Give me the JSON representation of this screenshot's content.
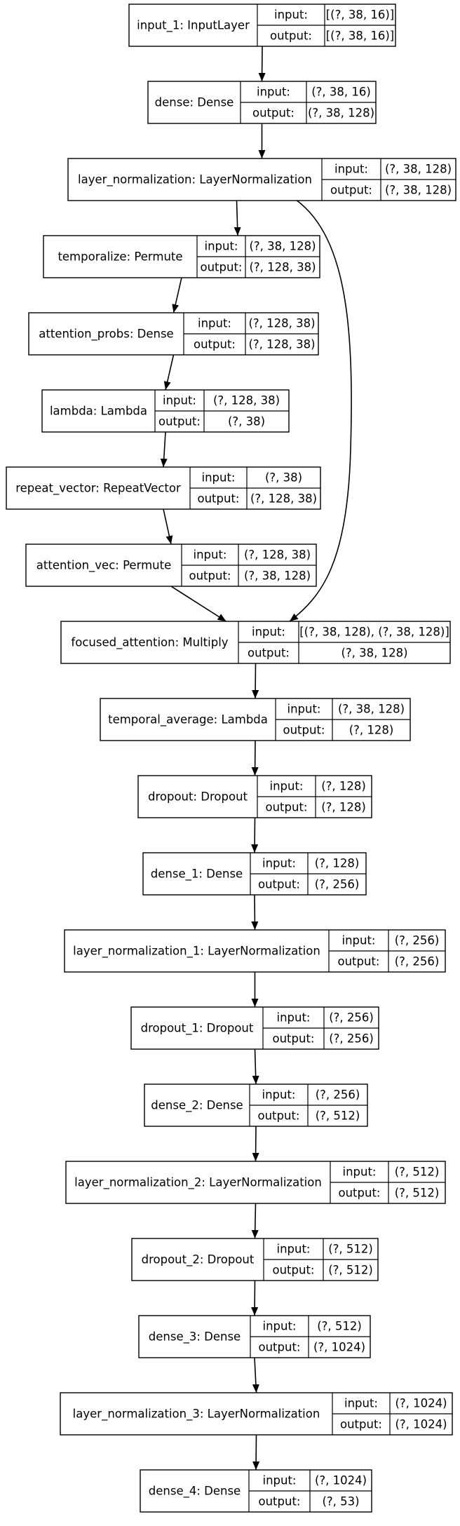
{
  "layers": [
    {
      "name": "input_1: InputLayer",
      "input_label": "input:",
      "input_shape": "[(?, 38, 16)]",
      "output_label": "output:",
      "output_shape": "[(?, 38, 16)]"
    },
    {
      "name": "dense: Dense",
      "input_label": "input:",
      "input_shape": "(?, 38, 16)",
      "output_label": "output:",
      "output_shape": "(?, 38, 128)"
    },
    {
      "name": "layer_normalization: LayerNormalization",
      "input_label": "input:",
      "input_shape": "(?, 38, 128)",
      "output_label": "output:",
      "output_shape": "(?, 38, 128)"
    },
    {
      "name": "temporalize: Permute",
      "input_label": "input:",
      "input_shape": "(?, 38, 128)",
      "output_label": "output:",
      "output_shape": "(?, 128, 38)"
    },
    {
      "name": "attention_probs: Dense",
      "input_label": "input:",
      "input_shape": "(?, 128, 38)",
      "output_label": "output:",
      "output_shape": "(?, 128, 38)"
    },
    {
      "name": "lambda: Lambda",
      "input_label": "input:",
      "input_shape": "(?, 128, 38)",
      "output_label": "output:",
      "output_shape": "(?, 38)"
    },
    {
      "name": "repeat_vector: RepeatVector",
      "input_label": "input:",
      "input_shape": "(?, 38)",
      "output_label": "output:",
      "output_shape": "(?, 128, 38)"
    },
    {
      "name": "attention_vec: Permute",
      "input_label": "input:",
      "input_shape": "(?, 128, 38)",
      "output_label": "output:",
      "output_shape": "(?, 38, 128)"
    },
    {
      "name": "focused_attention: Multiply",
      "input_label": "input:",
      "input_shape": "[(?, 38, 128), (?, 38, 128)]",
      "output_label": "output:",
      "output_shape": "(?, 38, 128)"
    },
    {
      "name": "temporal_average: Lambda",
      "input_label": "input:",
      "input_shape": "(?, 38, 128)",
      "output_label": "output:",
      "output_shape": "(?, 128)"
    },
    {
      "name": "dropout: Dropout",
      "input_label": "input:",
      "input_shape": "(?, 128)",
      "output_label": "output:",
      "output_shape": "(?, 128)"
    },
    {
      "name": "dense_1: Dense",
      "input_label": "input:",
      "input_shape": "(?, 128)",
      "output_label": "output:",
      "output_shape": "(?, 256)"
    },
    {
      "name": "layer_normalization_1: LayerNormalization",
      "input_label": "input:",
      "input_shape": "(?, 256)",
      "output_label": "output:",
      "output_shape": "(?, 256)"
    },
    {
      "name": "dropout_1: Dropout",
      "input_label": "input:",
      "input_shape": "(?, 256)",
      "output_label": "output:",
      "output_shape": "(?, 256)"
    },
    {
      "name": "dense_2: Dense",
      "input_label": "input:",
      "input_shape": "(?, 256)",
      "output_label": "output:",
      "output_shape": "(?, 512)"
    },
    {
      "name": "layer_normalization_2: LayerNormalization",
      "input_label": "input:",
      "input_shape": "(?, 512)",
      "output_label": "output:",
      "output_shape": "(?, 512)"
    },
    {
      "name": "dropout_2: Dropout",
      "input_label": "input:",
      "input_shape": "(?, 512)",
      "output_label": "output:",
      "output_shape": "(?, 512)"
    },
    {
      "name": "dense_3: Dense",
      "input_label": "input:",
      "input_shape": "(?, 512)",
      "output_label": "output:",
      "output_shape": "(?, 1024)"
    },
    {
      "name": "layer_normalization_3: LayerNormalization",
      "input_label": "input:",
      "input_shape": "(?, 1024)",
      "output_label": "output:",
      "output_shape": "(?, 1024)"
    },
    {
      "name": "dense_4: Dense",
      "input_label": "input:",
      "input_shape": "(?, 1024)",
      "output_label": "output:",
      "output_shape": "(?, 53)"
    }
  ],
  "edges": [
    {
      "from": 0,
      "to": 1
    },
    {
      "from": 1,
      "to": 2
    },
    {
      "from": 2,
      "to": 3
    },
    {
      "from": 2,
      "to": 8
    },
    {
      "from": 3,
      "to": 4
    },
    {
      "from": 4,
      "to": 5
    },
    {
      "from": 5,
      "to": 6
    },
    {
      "from": 6,
      "to": 7
    },
    {
      "from": 7,
      "to": 8
    },
    {
      "from": 8,
      "to": 9
    },
    {
      "from": 9,
      "to": 10
    },
    {
      "from": 10,
      "to": 11
    },
    {
      "from": 11,
      "to": 12
    },
    {
      "from": 12,
      "to": 13
    },
    {
      "from": 13,
      "to": 14
    },
    {
      "from": 14,
      "to": 15
    },
    {
      "from": 15,
      "to": 16
    },
    {
      "from": 16,
      "to": 17
    },
    {
      "from": 17,
      "to": 18
    },
    {
      "from": 18,
      "to": 19
    }
  ]
}
